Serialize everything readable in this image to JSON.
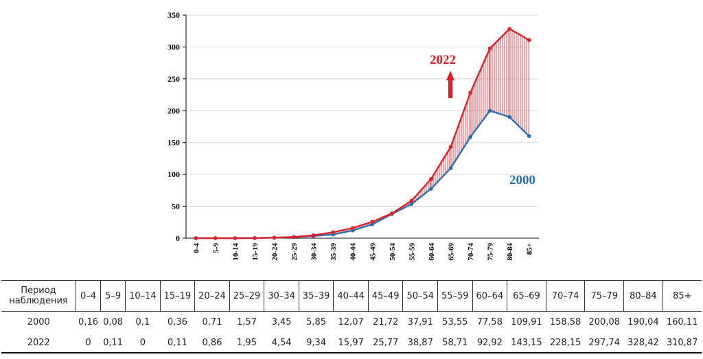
{
  "chart_data": {
    "type": "line",
    "categories": [
      "0-4",
      "5-9",
      "10-14",
      "15-19",
      "20-24",
      "25-29",
      "30-34",
      "35-39",
      "40-44",
      "45-49",
      "50-54",
      "55-59",
      "60-64",
      "65-69",
      "70-74",
      "75-79",
      "80-84",
      "85+"
    ],
    "series": [
      {
        "name": "2000",
        "color": "#2a6db5",
        "values": [
          0.16,
          0.08,
          0.1,
          0.36,
          0.71,
          1.57,
          3.45,
          5.85,
          12.07,
          21.72,
          37.91,
          53.55,
          77.58,
          109.91,
          158.58,
          200.08,
          190.04,
          160.11
        ]
      },
      {
        "name": "2022",
        "color": "#e02027",
        "values": [
          0,
          0.11,
          0,
          0.11,
          0.86,
          1.95,
          4.54,
          9.34,
          15.97,
          25.77,
          38.87,
          58.71,
          92.92,
          143.15,
          228.15,
          297.74,
          328.42,
          310.87
        ]
      }
    ],
    "ylim": [
      0,
      350
    ],
    "yticks": [
      0,
      50,
      100,
      150,
      200,
      250,
      300,
      350
    ],
    "annotations": {
      "label_2022": "2022",
      "label_2000": "2000"
    },
    "grid": true
  },
  "table": {
    "header_label": "Период наблюдения",
    "columns": [
      "0–4",
      "5–9",
      "10–14",
      "15–19",
      "20–24",
      "25–29",
      "30–34",
      "35–39",
      "40–44",
      "45–49",
      "50–54",
      "55–59",
      "60–64",
      "65–69",
      "70–74",
      "75–79",
      "80–84",
      "85+"
    ],
    "rows": [
      {
        "label": "2000",
        "values": [
          "0,16",
          "0,08",
          "0,1",
          "0,36",
          "0,71",
          "1,57",
          "3,45",
          "5,85",
          "12,07",
          "21,72",
          "37,91",
          "53,55",
          "77,58",
          "109,91",
          "158,58",
          "200,08",
          "190,04",
          "160,11"
        ]
      },
      {
        "label": "2022",
        "values": [
          "0",
          "0,11",
          "0",
          "0,11",
          "0,86",
          "1,95",
          "4,54",
          "9,34",
          "15,97",
          "25,77",
          "38,87",
          "58,71",
          "92,92",
          "143,15",
          "228,15",
          "297,74",
          "328,42",
          "310,87"
        ]
      }
    ]
  }
}
